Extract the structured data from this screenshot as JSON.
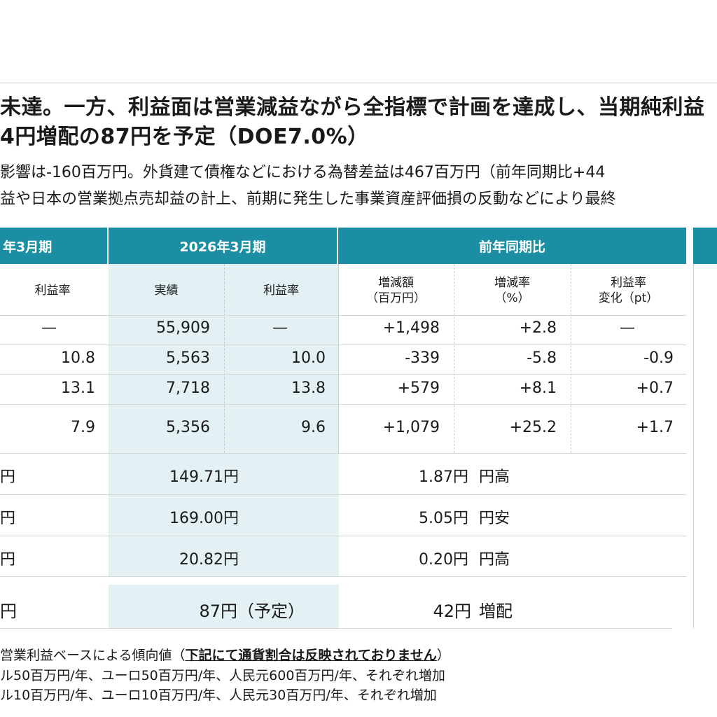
{
  "headline": {
    "line1": "未達。一方、利益面は営業減益ながら全指標で計画を達成し、当期純利益",
    "line2": "4円増配の87円を予定（DOE7.0%）"
  },
  "body_lines": [
    "影響は-160百万円。外貨建て債権などにおける為替差益は467百万円（前年同期比+44",
    "益や日本の営業拠点売却益の計上、前期に発生した事業資産評価損の反動などにより最終"
  ],
  "table": {
    "headers": {
      "prev": "年3月期",
      "curr": "2026年3月期",
      "yoy": "前年同期比"
    },
    "subheaders": {
      "prev_margin": "利益率",
      "actual": "実績",
      "curr_margin": "利益率",
      "change_amount_1": "増減額",
      "change_amount_2": "（百万円）",
      "change_rate_1": "増減率",
      "change_rate_2": "（%）",
      "margin_change_1": "利益率",
      "margin_change_2": "変化（pt）"
    },
    "rows": [
      {
        "prev_margin": "—",
        "actual": "55,909",
        "curr_margin": "—",
        "amount": "+1,498",
        "rate": "+2.8",
        "margin_change": "—"
      },
      {
        "prev_margin": "10.8",
        "actual": "5,563",
        "curr_margin": "10.0",
        "amount": "-339",
        "rate": "-5.8",
        "margin_change": "-0.9"
      },
      {
        "prev_margin": "13.1",
        "actual": "7,718",
        "curr_margin": "13.8",
        "amount": "+579",
        "rate": "+8.1",
        "margin_change": "+0.7"
      },
      {
        "prev_margin": "7.9",
        "actual": "5,356",
        "curr_margin": "9.6",
        "amount": "+1,079",
        "rate": "+25.2",
        "margin_change": "+1.7"
      }
    ],
    "fx_rows": [
      {
        "prev": "円",
        "actual": "149.71円",
        "change": "1.87円",
        "dir": "円高"
      },
      {
        "prev": "円",
        "actual": "169.00円",
        "change": "5.05円",
        "dir": "円安"
      },
      {
        "prev": "円",
        "actual": "20.82円",
        "change": "0.20円",
        "dir": "円高"
      }
    ],
    "dividend": {
      "prev": "円",
      "actual": "87円（予定）",
      "change": "42円",
      "dir": "増配"
    }
  },
  "notes": {
    "line1_prefix": "営業利益ベースによる傾向値（",
    "line1_bold": "下記にて通貨割合は反映されておりません",
    "line1_suffix": "）",
    "line2": "ル50百万円/年、ユーロ50百万円/年、人民元600百万円/年、それぞれ増加",
    "line3": "ル10百万円/年、ユーロ10百万円/年、人民元30百万円/年、それぞれ増加"
  }
}
